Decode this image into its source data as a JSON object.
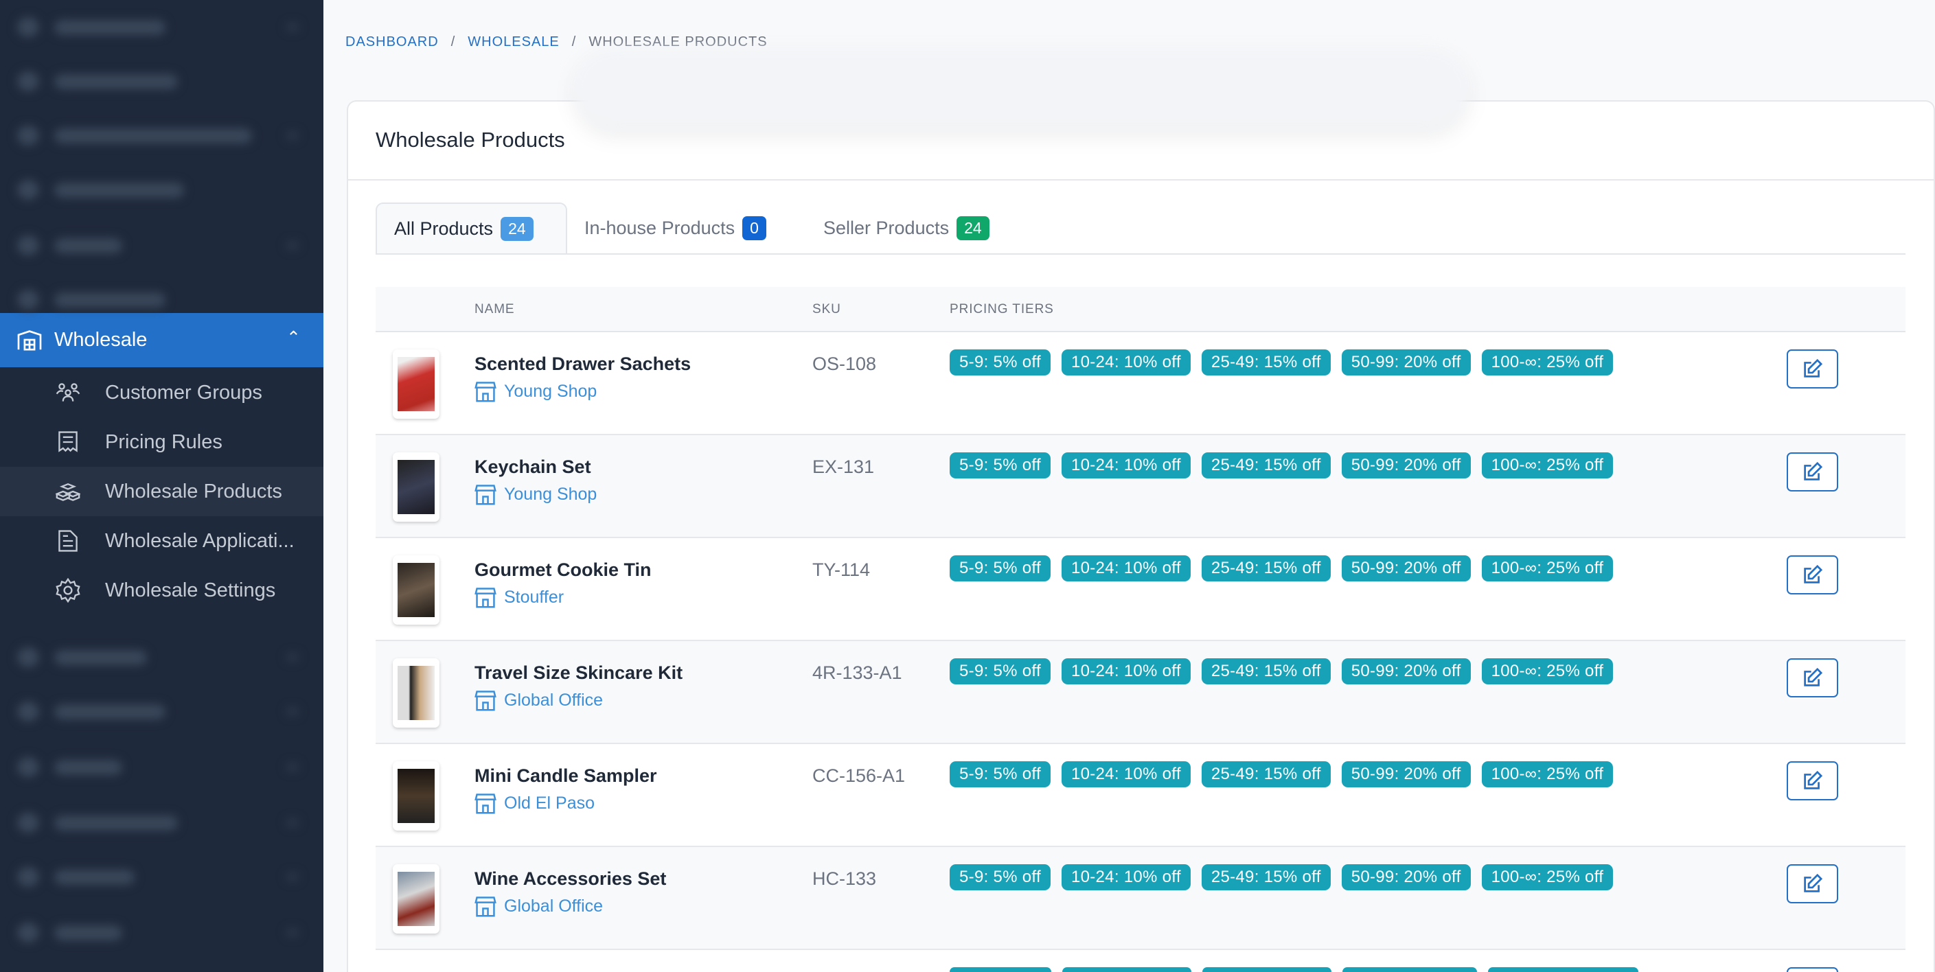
{
  "sidebar": {
    "active_section": {
      "label": "Wholesale",
      "icon": "warehouse-icon"
    },
    "sub_items": [
      {
        "label": "Customer Groups",
        "icon": "users-icon"
      },
      {
        "label": "Pricing Rules",
        "icon": "receipt-icon"
      },
      {
        "label": "Wholesale Products",
        "icon": "boxes-icon",
        "active": true
      },
      {
        "label": "Wholesale Applicati...",
        "icon": "document-icon"
      },
      {
        "label": "Wholesale Settings",
        "icon": "gear-icon"
      }
    ]
  },
  "breadcrumb": [
    "DASHBOARD",
    "WHOLESALE",
    "WHOLESALE PRODUCTS"
  ],
  "card": {
    "title": "Wholesale Products"
  },
  "tabs": [
    {
      "label": "All Products",
      "count": "24",
      "color": "#4a9be3"
    },
    {
      "label": "In-house Products",
      "count": "0",
      "color": "#1266d4"
    },
    {
      "label": "Seller Products",
      "count": "24",
      "color": "#0fa86a"
    }
  ],
  "table": {
    "headers": {
      "name": "NAME",
      "sku": "SKU",
      "tiers": "PRICING TIERS"
    },
    "rows": [
      {
        "name": "Scented Drawer Sachets",
        "shop": "Young Shop",
        "sku": "OS-108",
        "tiers": [
          "5-9: 5% off",
          "10-24: 10% off",
          "25-49: 15% off",
          "50-99: 20% off",
          "100-∞: 25% off"
        ]
      },
      {
        "name": "Keychain Set",
        "shop": "Young Shop",
        "sku": "EX-131",
        "tiers": [
          "5-9: 5% off",
          "10-24: 10% off",
          "25-49: 15% off",
          "50-99: 20% off",
          "100-∞: 25% off"
        ]
      },
      {
        "name": "Gourmet Cookie Tin",
        "shop": "Stouffer",
        "sku": "TY-114",
        "tiers": [
          "5-9: 5% off",
          "10-24: 10% off",
          "25-49: 15% off",
          "50-99: 20% off",
          "100-∞: 25% off"
        ]
      },
      {
        "name": "Travel Size Skincare Kit",
        "shop": "Global Office",
        "sku": "4R-133-A1",
        "tiers": [
          "5-9: 5% off",
          "10-24: 10% off",
          "25-49: 15% off",
          "50-99: 20% off",
          "100-∞: 25% off"
        ]
      },
      {
        "name": "Mini Candle Sampler",
        "shop": "Old El Paso",
        "sku": "CC-156-A1",
        "tiers": [
          "5-9: 5% off",
          "10-24: 10% off",
          "25-49: 15% off",
          "50-99: 20% off",
          "100-∞: 25% off"
        ]
      },
      {
        "name": "Wine Accessories Set",
        "shop": "Global Office",
        "sku": "HC-133",
        "tiers": [
          "5-9: 5% off",
          "10-24: 10% off",
          "25-49: 15% off",
          "50-99: 20% off",
          "100-∞: 25% off"
        ]
      }
    ]
  },
  "colors": {
    "sidebar_bg": "#1e293b",
    "accent": "#2270c8",
    "tier_badge": "#17a2b8",
    "shop_link": "#3b8fd9"
  }
}
